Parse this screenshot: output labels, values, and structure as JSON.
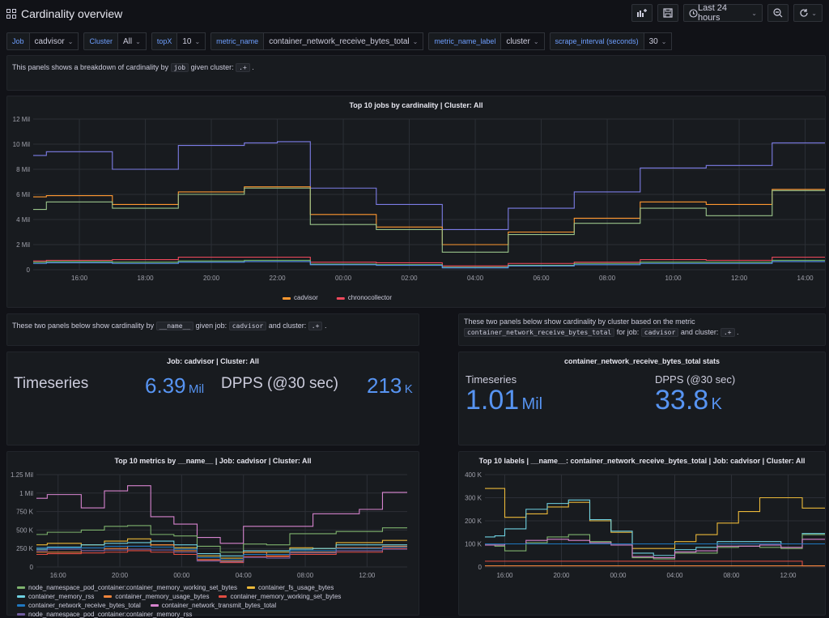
{
  "header": {
    "title": "Cardinality overview",
    "time_range": "Last 24 hours"
  },
  "variables": [
    {
      "label": "Job",
      "value": "cadvisor"
    },
    {
      "label": "Cluster",
      "value": "All"
    },
    {
      "label": "topX",
      "value": "10"
    },
    {
      "label": "metric_name",
      "value": "container_network_receive_bytes_total"
    },
    {
      "label": "metric_name_label",
      "value": "cluster"
    },
    {
      "label": "scrape_interval (seconds)",
      "value": "30"
    }
  ],
  "intro": {
    "pre": "This panels shows a breakdown of cardinality by",
    "code1": "job",
    "mid": "given cluster:",
    "code2": ".+",
    "post": "."
  },
  "left_text": {
    "pre": "These two panels below show cardinality by",
    "code1": "__name__",
    "mid1": "given job:",
    "code2": "cadvisor",
    "mid2": "and cluster:",
    "code3": ".+",
    "post": "."
  },
  "right_text": {
    "line1": "These two panels below show cardinality by cluster based on the metric",
    "code1": "container_network_receive_bytes_total",
    "mid1": "for job:",
    "code2": "cadvisor",
    "mid2": "and cluster:",
    "code3": ".+",
    "post": "."
  },
  "stat_left": {
    "title": "Job: cadvisor | Cluster: All",
    "ts_label": "Timeseries",
    "ts_value": "6.39",
    "ts_unit": "Mil",
    "dpps_label": "DPPS (@30 sec)",
    "dpps_value": "213",
    "dpps_unit": "K"
  },
  "stat_right": {
    "title": "container_network_receive_bytes_total stats",
    "ts_label": "Timeseries",
    "ts_value": "1.01",
    "ts_unit": "Mil",
    "dpps_label": "DPPS (@30 sec)",
    "dpps_value": "33.8",
    "dpps_unit": "K"
  },
  "chart_data": [
    {
      "id": "top_jobs",
      "type": "line",
      "title": "Top 10 jobs by cardinality | Cluster: All",
      "xticks": [
        "16:00",
        "18:00",
        "20:00",
        "22:00",
        "00:00",
        "02:00",
        "04:00",
        "06:00",
        "08:00",
        "10:00",
        "12:00",
        "14:00"
      ],
      "yticks": [
        "0",
        "2 Mil",
        "4 Mil",
        "6 Mil",
        "8 Mil",
        "10 Mil",
        "12 Mil"
      ],
      "ylim": [
        0,
        12
      ],
      "xlim": [
        14.6,
        38.6
      ],
      "x": [
        14.6,
        15.0,
        16.0,
        17.0,
        18.0,
        19.0,
        20.0,
        21.0,
        22.0,
        23.0,
        24.0,
        25.0,
        26.0,
        27.0,
        28.0,
        29.0,
        30.0,
        31.0,
        32.0,
        33.0,
        34.0,
        35.0,
        36.0,
        37.0,
        38.6
      ],
      "series": [
        {
          "color": "#7c7ce6",
          "values": [
            9.1,
            9.4,
            9.4,
            8.0,
            8.0,
            9.9,
            9.9,
            10.1,
            10.2,
            6.5,
            6.5,
            5.2,
            5.2,
            3.2,
            3.2,
            4.9,
            4.9,
            6.2,
            6.2,
            8.1,
            8.1,
            8.3,
            8.3,
            10.1,
            10.1
          ]
        },
        {
          "color": "#ff9830",
          "values": [
            5.8,
            5.9,
            5.9,
            5.2,
            5.2,
            6.2,
            6.2,
            6.6,
            6.6,
            4.4,
            4.4,
            3.4,
            3.4,
            2.0,
            2.0,
            3.0,
            3.0,
            4.1,
            4.1,
            5.4,
            5.4,
            5.2,
            5.2,
            6.4,
            6.4
          ]
        },
        {
          "color": "#9ac48a",
          "values": [
            4.8,
            5.4,
            5.4,
            4.9,
            4.9,
            6.0,
            6.0,
            6.5,
            6.5,
            3.6,
            3.6,
            3.2,
            3.2,
            1.4,
            1.4,
            2.8,
            2.8,
            3.7,
            3.7,
            4.9,
            4.9,
            4.3,
            4.3,
            6.3,
            6.3
          ]
        },
        {
          "color": "#f2495c",
          "values": [
            0.7,
            0.75,
            0.75,
            0.8,
            0.8,
            1.0,
            1.0,
            1.0,
            1.0,
            0.6,
            0.6,
            0.55,
            0.55,
            0.3,
            0.3,
            0.5,
            0.5,
            0.6,
            0.6,
            0.8,
            0.8,
            0.75,
            0.75,
            1.0,
            1.0
          ]
        },
        {
          "color": "#73bf69",
          "values": [
            0.6,
            0.65,
            0.65,
            0.6,
            0.6,
            0.7,
            0.7,
            0.75,
            0.75,
            0.45,
            0.45,
            0.4,
            0.4,
            0.2,
            0.2,
            0.35,
            0.35,
            0.5,
            0.5,
            0.6,
            0.6,
            0.6,
            0.6,
            0.75,
            0.75
          ]
        },
        {
          "color": "#5794f2",
          "values": [
            0.5,
            0.55,
            0.55,
            0.5,
            0.5,
            0.6,
            0.6,
            0.65,
            0.65,
            0.4,
            0.4,
            0.35,
            0.35,
            0.15,
            0.15,
            0.3,
            0.3,
            0.4,
            0.4,
            0.5,
            0.5,
            0.5,
            0.5,
            0.65,
            0.65
          ]
        }
      ],
      "legend": [
        {
          "name": "cadvisor",
          "color": "#ff9830"
        },
        {
          "name": "chronocollector",
          "color": "#f2495c"
        }
      ]
    },
    {
      "id": "top_metrics",
      "type": "line",
      "title": "Top 10 metrics by __name__ | Job: cadvisor | Cluster: All",
      "xticks": [
        "16:00",
        "20:00",
        "00:00",
        "04:00",
        "08:00",
        "12:00"
      ],
      "yticks": [
        "0",
        "250 K",
        "500 K",
        "750 K",
        "1 Mil",
        "1.25 Mil"
      ],
      "ylim": [
        0,
        1.25
      ],
      "xlim": [
        14.6,
        38.6
      ],
      "x": [
        14.6,
        15.3,
        16.0,
        17.5,
        19.0,
        20.5,
        22.0,
        23.5,
        25.0,
        26.5,
        28.0,
        29.5,
        31.0,
        32.5,
        34.0,
        35.5,
        37.0,
        38.6
      ],
      "series": [
        {
          "color": "#d683ce",
          "values": [
            0.93,
            0.98,
            0.98,
            0.8,
            1.03,
            1.1,
            0.68,
            0.58,
            0.4,
            0.32,
            0.55,
            0.55,
            0.55,
            0.72,
            0.72,
            0.78,
            1.01,
            1.01
          ]
        },
        {
          "color": "#7eb26d",
          "values": [
            0.44,
            0.47,
            0.47,
            0.5,
            0.55,
            0.56,
            0.44,
            0.42,
            0.28,
            0.2,
            0.31,
            0.3,
            0.45,
            0.45,
            0.48,
            0.48,
            0.53,
            0.53
          ]
        },
        {
          "color": "#eab839",
          "values": [
            0.3,
            0.32,
            0.32,
            0.3,
            0.35,
            0.38,
            0.3,
            0.26,
            0.15,
            0.12,
            0.2,
            0.2,
            0.26,
            0.25,
            0.33,
            0.33,
            0.36,
            0.36
          ]
        },
        {
          "color": "#6ed0e0",
          "values": [
            0.24,
            0.27,
            0.27,
            0.3,
            0.32,
            0.33,
            0.35,
            0.3,
            0.18,
            0.15,
            0.22,
            0.22,
            0.24,
            0.25,
            0.3,
            0.3,
            0.3,
            0.3
          ]
        },
        {
          "color": "#ef843c",
          "values": [
            0.2,
            0.2,
            0.2,
            0.22,
            0.25,
            0.28,
            0.3,
            0.22,
            0.1,
            0.08,
            0.2,
            0.15,
            0.2,
            0.2,
            0.26,
            0.26,
            0.28,
            0.28
          ]
        },
        {
          "color": "#e24d42",
          "values": [
            0.17,
            0.18,
            0.18,
            0.19,
            0.2,
            0.22,
            0.2,
            0.17,
            0.09,
            0.06,
            0.14,
            0.14,
            0.17,
            0.17,
            0.2,
            0.2,
            0.25,
            0.25
          ]
        },
        {
          "color": "#1f78c1",
          "values": [
            0.26,
            0.26,
            0.26,
            0.26,
            0.28,
            0.28,
            0.27,
            0.24,
            0.13,
            0.1,
            0.17,
            0.17,
            0.22,
            0.22,
            0.25,
            0.25,
            0.27,
            0.27
          ]
        },
        {
          "color": "#705da0",
          "values": [
            0.22,
            0.24,
            0.24,
            0.22,
            0.23,
            0.24,
            0.23,
            0.2,
            0.08,
            0.07,
            0.13,
            0.12,
            0.19,
            0.19,
            0.22,
            0.22,
            0.24,
            0.24
          ]
        }
      ],
      "legend": [
        {
          "name": "node_namespace_pod_container:container_memory_working_set_bytes",
          "color": "#7eb26d"
        },
        {
          "name": "container_fs_usage_bytes",
          "color": "#eab839"
        },
        {
          "name": "container_memory_rss",
          "color": "#6ed0e0"
        },
        {
          "name": "container_memory_usage_bytes",
          "color": "#ef843c"
        },
        {
          "name": "container_memory_working_set_bytes",
          "color": "#e24d42"
        },
        {
          "name": "container_network_receive_bytes_total",
          "color": "#1f78c1"
        },
        {
          "name": "container_network_transmit_bytes_total",
          "color": "#d683ce"
        },
        {
          "name": "node_namespace_pod_container:container_memory_rss",
          "color": "#705da0"
        }
      ]
    },
    {
      "id": "top_labels",
      "type": "line",
      "title": "Top 10 labels | __name__: container_network_receive_bytes_total | Job: cadvisor | Cluster: All",
      "xticks": [
        "16:00",
        "20:00",
        "00:00",
        "04:00",
        "08:00",
        "12:00"
      ],
      "yticks": [
        "0",
        "100 K",
        "200 K",
        "300 K",
        "400 K"
      ],
      "ylim": [
        0,
        400
      ],
      "xlim": [
        14.6,
        38.6
      ],
      "x": [
        14.6,
        15.3,
        16.0,
        17.5,
        19.0,
        20.5,
        22.0,
        23.5,
        25.0,
        26.5,
        28.0,
        29.5,
        31.0,
        32.5,
        34.0,
        35.5,
        37.0,
        38.6
      ],
      "series": [
        {
          "color": "#eab839",
          "values": [
            340,
            340,
            215,
            230,
            260,
            280,
            200,
            150,
            80,
            80,
            110,
            140,
            190,
            240,
            300,
            300,
            255,
            255
          ]
        },
        {
          "color": "#6ed0e0",
          "values": [
            130,
            135,
            165,
            250,
            275,
            290,
            205,
            155,
            60,
            50,
            75,
            85,
            110,
            110,
            110,
            100,
            145,
            145
          ]
        },
        {
          "color": "#7eb26d",
          "values": [
            95,
            90,
            70,
            105,
            130,
            140,
            110,
            100,
            40,
            35,
            60,
            60,
            85,
            90,
            85,
            80,
            140,
            140
          ]
        },
        {
          "color": "#d683ce",
          "values": [
            95,
            95,
            100,
            115,
            120,
            115,
            105,
            95,
            45,
            40,
            65,
            70,
            90,
            90,
            95,
            85,
            120,
            120
          ]
        },
        {
          "color": "#1f78c1",
          "values": [
            100,
            100,
            100,
            100,
            100,
            100,
            100,
            100,
            100,
            100,
            100,
            100,
            100,
            100,
            100,
            100,
            100,
            100
          ]
        },
        {
          "color": "#e24d42",
          "values": [
            25,
            25,
            25,
            25,
            25,
            25,
            25,
            25,
            25,
            25,
            25,
            25,
            25,
            25,
            25,
            25,
            5,
            5
          ]
        },
        {
          "color": "#ef843c",
          "values": [
            5,
            5,
            5,
            5,
            5,
            5,
            5,
            5,
            5,
            5,
            5,
            5,
            5,
            5,
            5,
            5,
            5,
            5
          ]
        }
      ]
    }
  ]
}
